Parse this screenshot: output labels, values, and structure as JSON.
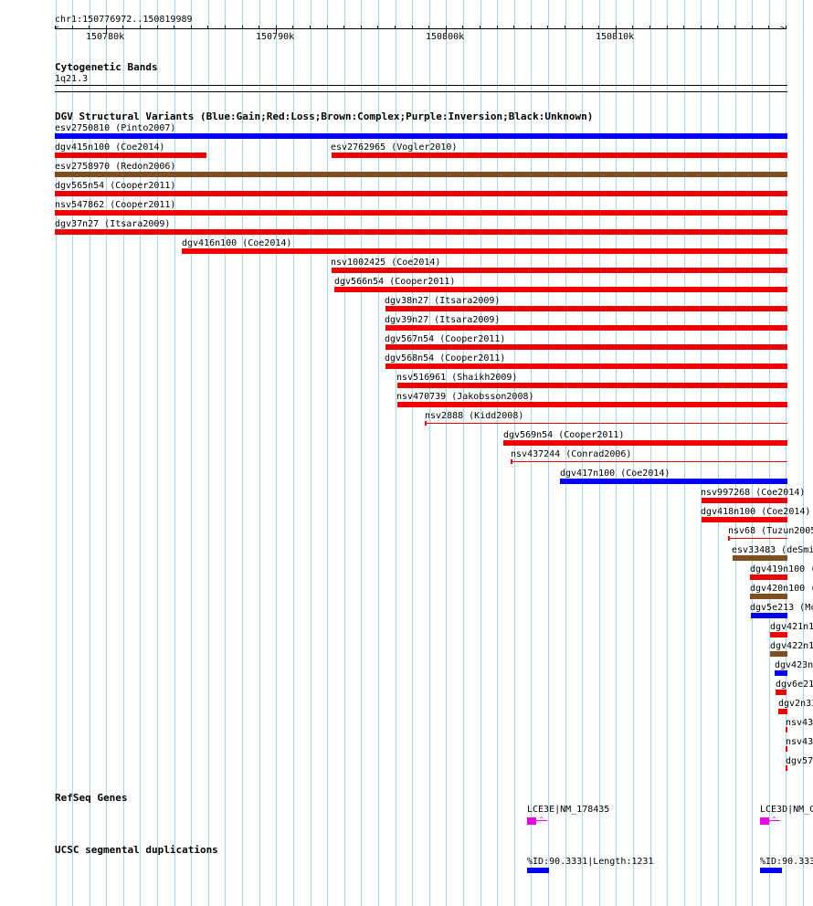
{
  "ruler": {
    "location": "chr1:150776972..150819989",
    "tick_labels": [
      "150780k",
      "150790k",
      "150800k",
      "150810k"
    ]
  },
  "tracks": {
    "cytoband": {
      "title": "Cytogenetic Bands",
      "band": "1q21.3"
    },
    "dgv": {
      "title": "DGV Structural Variants (Blue:Gain;Red:Loss;Brown:Complex;Purple:Inversion;Black:Unknown)"
    },
    "refseq": {
      "title": "RefSeq Genes"
    },
    "segdup": {
      "title": "UCSC segmental duplications"
    }
  },
  "colors": {
    "gain": "#0000ee",
    "loss": "#ee0000",
    "complex": "#7f4f1f",
    "gene": "#ee00ee",
    "segdup": "#0000ee",
    "grid": "#a8d8ee"
  },
  "variants": [
    {
      "label": "esv2750810 (Pinto2007)",
      "type": "gain"
    },
    {
      "label": "dgv415n100 (Coe2014)",
      "type": "loss"
    },
    {
      "label": "esv2762965 (Vogler2010)",
      "type": "loss"
    },
    {
      "label": "esv2758970 (Redon2006)",
      "type": "complex"
    },
    {
      "label": "dgv565n54 (Cooper2011)",
      "type": "loss"
    },
    {
      "label": "nsv547862 (Cooper2011)",
      "type": "loss"
    },
    {
      "label": "dgv37n27 (Itsara2009)",
      "type": "loss"
    },
    {
      "label": "dgv416n100 (Coe2014)",
      "type": "loss"
    },
    {
      "label": "nsv1002425 (Coe2014)",
      "type": "loss"
    },
    {
      "label": "dgv566n54 (Cooper2011)",
      "type": "loss"
    },
    {
      "label": "dgv38n27 (Itsara2009)",
      "type": "loss"
    },
    {
      "label": "dgv39n27 (Itsara2009)",
      "type": "loss"
    },
    {
      "label": "dgv567n54 (Cooper2011)",
      "type": "loss"
    },
    {
      "label": "dgv568n54 (Cooper2011)",
      "type": "loss"
    },
    {
      "label": "nsv516961 (Shaikh2009)",
      "type": "loss"
    },
    {
      "label": "nsv470739 (Jakobsson2008)",
      "type": "loss"
    },
    {
      "label": "nsv2888 (Kidd2008)",
      "type": "loss"
    },
    {
      "label": "dgv569n54 (Cooper2011)",
      "type": "loss"
    },
    {
      "label": "nsv437244 (Conrad2006)",
      "type": "loss"
    },
    {
      "label": "dgv417n100 (Coe2014)",
      "type": "gain"
    },
    {
      "label": "nsv997268 (Coe2014)",
      "type": "loss"
    },
    {
      "label": "dgv418n100 (Coe2014)",
      "type": "loss"
    },
    {
      "label": "nsv68 (Tuzun2005",
      "type": "loss"
    },
    {
      "label": "esv33483 (deSmi",
      "type": "complex"
    },
    {
      "label": "dgv419n100 (",
      "type": "loss"
    },
    {
      "label": "dgv420n100 (",
      "type": "complex"
    },
    {
      "label": "dgv5e213 (Mc",
      "type": "gain"
    },
    {
      "label": "dgv421n1",
      "type": "loss"
    },
    {
      "label": "dgv422n1",
      "type": "complex"
    },
    {
      "label": "dgv423n",
      "type": "gain"
    },
    {
      "label": "dgv6e21",
      "type": "loss"
    },
    {
      "label": "dgv2n33",
      "type": "loss"
    },
    {
      "label": "nsv43",
      "type": "loss"
    },
    {
      "label": "nsv43",
      "type": "loss"
    },
    {
      "label": "dgv57",
      "type": "loss"
    }
  ],
  "genes": [
    {
      "label": "LCE3E|NM_178435"
    },
    {
      "label": "LCE3D|NM_C"
    }
  ],
  "segdups": [
    {
      "label": "%ID:90.3331|Length:1231"
    },
    {
      "label": "%ID:90.333"
    }
  ]
}
